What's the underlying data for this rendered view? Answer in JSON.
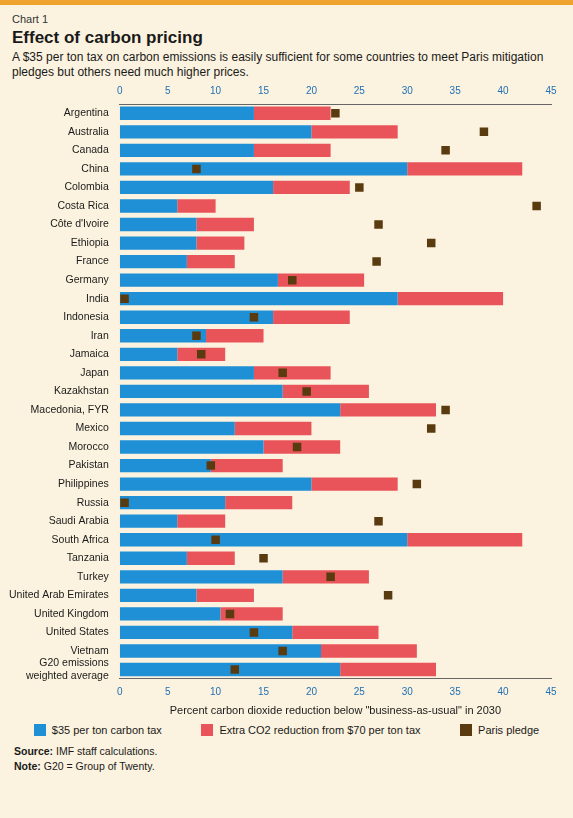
{
  "chart_data": {
    "type": "bar",
    "label": "Chart 1",
    "title": "Effect of carbon pricing",
    "subtitle": "A $35 per ton tax on carbon emissions is easily sufficient for some countries to meet Paris mitigation pledges but others need much higher prices.",
    "x_label": "Percent carbon dioxide reduction below \"business-as-usual\" in 2030",
    "orientation": "horizontal",
    "stacked": true,
    "grid": false,
    "legend": "bottom",
    "categories": [
      "Argentina",
      "Australia",
      "Canada",
      "China",
      "Colombia",
      "Costa Rica",
      "Côte d'Ivoire",
      "Ethiopia",
      "France",
      "Germany",
      "India",
      "Indonesia",
      "Iran",
      "Jamaica",
      "Japan",
      "Kazakhstan",
      "Macedonia, FYR",
      "Mexico",
      "Morocco",
      "Pakistan",
      "Philippines",
      "Russia",
      "Saudi Arabia",
      "South Africa",
      "Tanzania",
      "Turkey",
      "United Arab Emirates",
      "United Kingdom",
      "United States",
      "Vietnam",
      "G20 emissions weighted average"
    ],
    "series": [
      {
        "name": "$35 per ton carbon tax",
        "type": "bar",
        "color": "#1f8fd6",
        "values": [
          14,
          20,
          14,
          30,
          16,
          6,
          8,
          8,
          7,
          16.5,
          29,
          16,
          9,
          6,
          14,
          17,
          23,
          12,
          15,
          9.5,
          20,
          11,
          6,
          30,
          7,
          17,
          8,
          10.5,
          18,
          21,
          23
        ]
      },
      {
        "name": "Extra CO2 reduction from $70 per ton tax",
        "type": "bar",
        "color": "#e8545a",
        "values": [
          8,
          9,
          8,
          12,
          8,
          4,
          6,
          5,
          5,
          9,
          11,
          8,
          6,
          5,
          8,
          9,
          10,
          8,
          8,
          7.5,
          9,
          7,
          5,
          12,
          5,
          9,
          6,
          6.5,
          9,
          10,
          10
        ]
      },
      {
        "name": "Paris pledge",
        "type": "scatter",
        "marker": "square",
        "color": "#5a3a0f",
        "values": [
          22.5,
          38,
          34,
          8,
          25,
          43.5,
          27,
          32.5,
          26.8,
          18,
          0.5,
          14,
          8,
          8.5,
          17,
          19.5,
          34,
          32.5,
          18.5,
          9.5,
          31,
          0.5,
          27,
          10,
          15,
          22,
          28,
          11.5,
          14,
          17,
          12
        ]
      }
    ],
    "xlim": [
      0,
      45
    ],
    "xticks": [
      0,
      5,
      10,
      15,
      20,
      25,
      30,
      35,
      40,
      45
    ],
    "notes": [
      {
        "label": "Source:",
        "text": "IMF staff calculations."
      },
      {
        "label": "Note:",
        "text": "G20 = Group of Twenty."
      }
    ]
  }
}
